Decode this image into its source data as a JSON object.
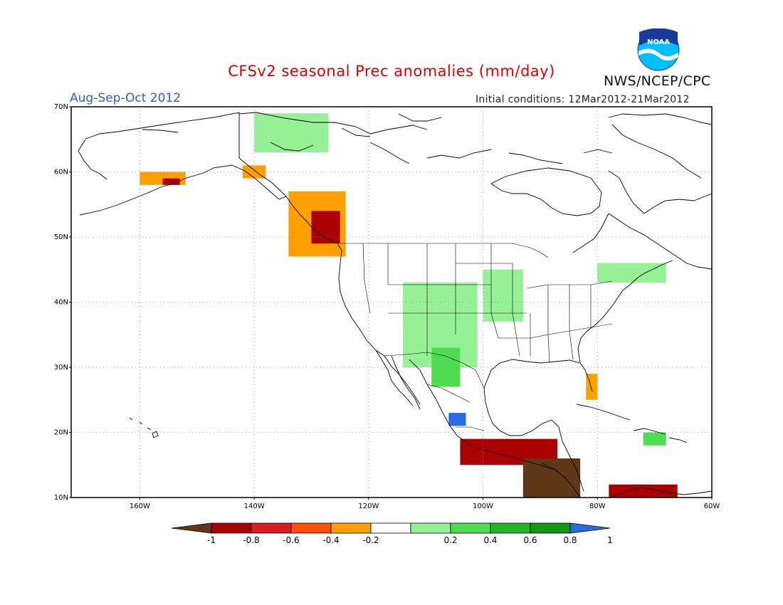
{
  "header": {
    "title": "CFSv2 seasonal Prec anomalies (mm/day)",
    "period": "Aug-Sep-Oct 2012",
    "initial_conditions": "Initial conditions: 12Mar2012-21Mar2012",
    "organization": "NWS/NCEP/CPC",
    "logo_text": "NOAA",
    "logo_icon": "noaa-logo-icon"
  },
  "map": {
    "projection": "lat-lon",
    "lon_range": [
      -172,
      -60
    ],
    "lat_range": [
      10,
      70
    ],
    "lat_ticks": [
      {
        "value": 70,
        "label": "70N"
      },
      {
        "value": 60,
        "label": "60N"
      },
      {
        "value": 50,
        "label": "50N"
      },
      {
        "value": 40,
        "label": "40N"
      },
      {
        "value": 30,
        "label": "30N"
      },
      {
        "value": 20,
        "label": "20N"
      },
      {
        "value": 10,
        "label": "10N"
      }
    ],
    "lon_ticks": [
      {
        "value": -160,
        "label": "160W"
      },
      {
        "value": -140,
        "label": "140W"
      },
      {
        "value": -120,
        "label": "120W"
      },
      {
        "value": -100,
        "label": "100W"
      },
      {
        "value": -80,
        "label": "80W"
      },
      {
        "value": -60,
        "label": "60W"
      }
    ],
    "grid": "dotted",
    "anomaly_regions": [
      {
        "name": "Alaska south coast",
        "lon": [
          -160,
          -152
        ],
        "lat": [
          58,
          60
        ],
        "category": "-0.4 to -0.2"
      },
      {
        "name": "Alaska south coast core",
        "lon": [
          -156,
          -153
        ],
        "lat": [
          58,
          59
        ],
        "category": "-0.8 to -0.6"
      },
      {
        "name": "Gulf of Alaska panhandle",
        "lon": [
          -142,
          -138
        ],
        "lat": [
          59,
          61
        ],
        "category": "-0.4 to -0.2"
      },
      {
        "name": "British Columbia coast",
        "lon": [
          -134,
          -124
        ],
        "lat": [
          47,
          57
        ],
        "category": "-0.4 to -0.2"
      },
      {
        "name": "British Columbia coast core",
        "lon": [
          -130,
          -125
        ],
        "lat": [
          49,
          54
        ],
        "category": "-0.8 to -0.6"
      },
      {
        "name": "Northern Canada",
        "lon": [
          -140,
          -127
        ],
        "lat": [
          63,
          69
        ],
        "category": "0.2 to 0.4"
      },
      {
        "name": "Southwest US",
        "lon": [
          -114,
          -101
        ],
        "lat": [
          30,
          43
        ],
        "category": "0.2 to 0.4"
      },
      {
        "name": "Sierra Madre Occidental",
        "lon": [
          -109,
          -104
        ],
        "lat": [
          27,
          33
        ],
        "category": "0.4 to 0.6"
      },
      {
        "name": "West Mexico",
        "lon": [
          -106,
          -103
        ],
        "lat": [
          21,
          23
        ],
        "category": "0.8 to 1"
      },
      {
        "name": "Upper Midwest",
        "lon": [
          -100,
          -93
        ],
        "lat": [
          37,
          45
        ],
        "category": "0.2 to 0.4"
      },
      {
        "name": "Great Lakes / New England",
        "lon": [
          -80,
          -68
        ],
        "lat": [
          43,
          46
        ],
        "category": "0.2 to 0.4"
      },
      {
        "name": "Florida",
        "lon": [
          -82,
          -80
        ],
        "lat": [
          25,
          29
        ],
        "category": "-0.4 to -0.2"
      },
      {
        "name": "Southern Mexico",
        "lon": [
          -104,
          -87
        ],
        "lat": [
          15,
          19
        ],
        "category": "-0.8 to -0.6"
      },
      {
        "name": "Central America",
        "lon": [
          -93,
          -83
        ],
        "lat": [
          10,
          16
        ],
        "category": "< -1"
      },
      {
        "name": "Northern South America",
        "lon": [
          -78,
          -66
        ],
        "lat": [
          10,
          12
        ],
        "category": "-0.8 to -0.6"
      },
      {
        "name": "Hispaniola",
        "lon": [
          -72,
          -68
        ],
        "lat": [
          18,
          20
        ],
        "category": "0.4 to 0.6"
      }
    ]
  },
  "legend": {
    "labels": [
      "-1",
      "-0.8",
      "-0.6",
      "-0.4",
      "-0.2",
      "0.2",
      "0.4",
      "0.6",
      "0.8",
      "1"
    ],
    "colors": [
      "#603818",
      "#aa0000",
      "#d81e1e",
      "#ff5010",
      "#ffa000",
      "#ffffff",
      "#96f096",
      "#50dc50",
      "#28b428",
      "#149614",
      "#2d6be0"
    ]
  }
}
